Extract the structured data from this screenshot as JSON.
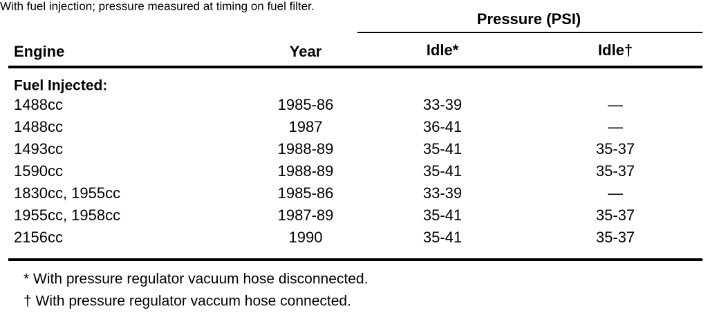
{
  "caption": "With fuel injection; pressure measured at timing on fuel filter.",
  "table": {
    "group_header": "Pressure (PSI)",
    "columns": [
      "Engine",
      "Year",
      "Idle*",
      "Idle†"
    ],
    "section": "Fuel Injected:",
    "rows": [
      [
        "1488cc",
        "1985-86",
        "33-39",
        "—"
      ],
      [
        "1488cc",
        "1987",
        "36-41",
        "—"
      ],
      [
        "1493cc",
        "1988-89",
        "35-41",
        "35-37"
      ],
      [
        "1590cc",
        "1988-89",
        "35-41",
        "35-37"
      ],
      [
        "1830cc, 1955cc",
        "1985-86",
        "33-39",
        "—"
      ],
      [
        "1955cc, 1958cc",
        "1987-89",
        "35-41",
        "35-37"
      ],
      [
        "2156cc",
        "1990",
        "35-41",
        "35-37"
      ]
    ]
  },
  "footnotes": [
    "* With pressure regulator vacuum hose disconnected.",
    "† With pressure regulator vaccum hose connected."
  ]
}
